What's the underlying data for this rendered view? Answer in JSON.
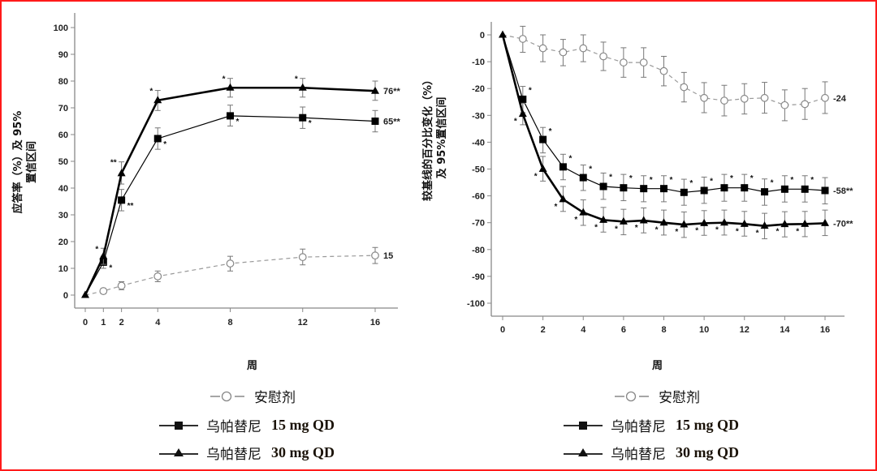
{
  "frame": {
    "border_color": "#ff1a1a"
  },
  "chart_data": [
    {
      "type": "line",
      "title": "",
      "xlabel": "周",
      "ylabel_line1": "应答率（%）及 95%",
      "ylabel_line2": "置信区间",
      "xlim": [
        0,
        16
      ],
      "ylim": [
        0,
        100
      ],
      "xticks": [
        0,
        1,
        2,
        4,
        8,
        12,
        16
      ],
      "yticks": [
        0,
        10,
        20,
        30,
        40,
        50,
        60,
        70,
        80,
        90,
        100
      ],
      "grid": false,
      "legend_position": "bottom",
      "series": [
        {
          "name": "安慰剂",
          "marker": "open-circle",
          "style": "dashed",
          "color": "#888888",
          "x": [
            0,
            1,
            2,
            4,
            8,
            12,
            16
          ],
          "values": [
            0,
            1.5,
            3.5,
            7,
            11.8,
            14.2,
            14.8
          ],
          "ci_low": [
            0,
            0.5,
            2,
            5,
            9,
            11.3,
            11.8
          ],
          "ci_high": [
            0,
            2.5,
            5,
            9,
            14.5,
            17.2,
            17.8
          ],
          "annotations": [
            "",
            "",
            "",
            "",
            "",
            "",
            ""
          ],
          "end_label": "15"
        },
        {
          "name": "乌帕替尼 15 mg QD",
          "marker": "filled-square",
          "style": "solid",
          "color": "#111111",
          "x": [
            0,
            1,
            2,
            4,
            8,
            12,
            16
          ],
          "values": [
            0,
            12.3,
            35.5,
            58.5,
            67,
            66.3,
            65
          ],
          "ci_low": [
            0,
            10,
            31.5,
            54.5,
            63.2,
            62.3,
            61
          ],
          "ci_high": [
            0,
            14.5,
            39.5,
            62.5,
            71,
            70.3,
            69
          ],
          "annotations": [
            "",
            "*",
            "**",
            "*",
            "*",
            "*",
            ""
          ],
          "end_label": "65**"
        },
        {
          "name": "乌帕替尼 30 mg QD",
          "marker": "filled-triangle",
          "style": "solid-thick",
          "color": "#000000",
          "x": [
            0,
            1,
            2,
            4,
            8,
            12,
            16
          ],
          "values": [
            0,
            14.5,
            45.5,
            72.8,
            77.5,
            77.5,
            76.3
          ],
          "ci_low": [
            0,
            11.5,
            41.5,
            69,
            74,
            74,
            72.8
          ],
          "ci_high": [
            0,
            17.5,
            49.8,
            76.5,
            81,
            81,
            80
          ],
          "annotations": [
            "",
            "*",
            "**",
            "*",
            "*",
            "*",
            ""
          ],
          "end_label": "76**"
        }
      ]
    },
    {
      "type": "line",
      "title": "",
      "xlabel": "周",
      "ylabel_line1": "较基线的百分比变化（%）",
      "ylabel_line2": "及 95%置信区间",
      "xlim": [
        0,
        16
      ],
      "ylim": [
        -100,
        0
      ],
      "xticks": [
        0,
        2,
        4,
        6,
        8,
        10,
        12,
        14,
        16
      ],
      "yticks": [
        0,
        -10,
        -20,
        -30,
        -40,
        -50,
        -60,
        -70,
        -80,
        -90,
        -100
      ],
      "grid": false,
      "legend_position": "bottom",
      "series": [
        {
          "name": "安慰剂",
          "marker": "open-circle",
          "style": "dashed",
          "color": "#888888",
          "x": [
            0,
            1,
            2,
            3,
            4,
            5,
            6,
            7,
            8,
            9,
            10,
            11,
            12,
            13,
            14,
            15,
            16
          ],
          "values": [
            0,
            -1.5,
            -5,
            -6.5,
            -5,
            -8,
            -10.3,
            -10.3,
            -13.5,
            -19.5,
            -23.5,
            -24.5,
            -23.8,
            -23.5,
            -26.2,
            -25.8,
            -23.5
          ],
          "ci_low": [
            0,
            -6.5,
            -10,
            -11.5,
            -10,
            -13.3,
            -15.8,
            -15.8,
            -19,
            -25,
            -29,
            -30.2,
            -29.5,
            -29.2,
            -32,
            -31.5,
            -29.3
          ],
          "ci_high": [
            0,
            3.2,
            0,
            -1.7,
            0,
            -2.7,
            -4.8,
            -4.8,
            -8,
            -14,
            -17.8,
            -18.8,
            -18.2,
            -17.7,
            -20.5,
            -20,
            -17.5
          ],
          "annotations": [
            "",
            "",
            "",
            "",
            "",
            "",
            "",
            "",
            "",
            "",
            "",
            "",
            "",
            "",
            "",
            "",
            ""
          ],
          "end_label": "-24"
        },
        {
          "name": "乌帕替尼 15 mg QD",
          "marker": "filled-square",
          "style": "solid",
          "color": "#111111",
          "x": [
            0,
            1,
            2,
            3,
            4,
            5,
            6,
            7,
            8,
            9,
            10,
            11,
            12,
            13,
            14,
            15,
            16
          ],
          "values": [
            0,
            -24,
            -39,
            -49.2,
            -53.2,
            -56.5,
            -57,
            -57.3,
            -57.3,
            -58.7,
            -58,
            -57,
            -57,
            -58.5,
            -57.5,
            -57.5,
            -58
          ],
          "ci_low": [
            0,
            -29,
            -44,
            -54,
            -58,
            -61.3,
            -61.8,
            -62.2,
            -62.2,
            -63.5,
            -62.8,
            -62,
            -62,
            -63.5,
            -62.3,
            -62.3,
            -63
          ],
          "ci_high": [
            0,
            -19.2,
            -34.5,
            -44.5,
            -48.5,
            -51.5,
            -52,
            -52.5,
            -52.5,
            -53.8,
            -53,
            -52,
            -52,
            -53.7,
            -52.5,
            -52.5,
            -53.2
          ],
          "annotations": [
            "",
            "*",
            "*",
            "*",
            "*",
            "*",
            "*",
            "*",
            "*",
            "*",
            "*",
            "*",
            "*",
            "*",
            "*",
            "*",
            ""
          ],
          "end_label": "-58**"
        },
        {
          "name": "乌帕替尼 30 mg QD",
          "marker": "filled-triangle",
          "style": "solid-thick",
          "color": "#000000",
          "x": [
            0,
            1,
            2,
            3,
            4,
            5,
            6,
            7,
            8,
            9,
            10,
            11,
            12,
            13,
            14,
            15,
            16
          ],
          "values": [
            0,
            -29.5,
            -50,
            -61.3,
            -66.2,
            -69,
            -69.6,
            -69.2,
            -70,
            -70.7,
            -70.2,
            -70,
            -70.5,
            -71.2,
            -70.6,
            -70.5,
            -70.2
          ],
          "ci_low": [
            0,
            -33.5,
            -54.5,
            -65.8,
            -71,
            -73.5,
            -74.5,
            -73.8,
            -74.6,
            -75.5,
            -74.7,
            -74.6,
            -75,
            -76,
            -75.3,
            -75.2,
            -74.8
          ],
          "ci_high": [
            0,
            -25.5,
            -45.3,
            -56.5,
            -61.5,
            -64.3,
            -65,
            -64.5,
            -65.3,
            -66,
            -65.5,
            -65.3,
            -65.8,
            -66.5,
            -65.9,
            -65.8,
            -65.3
          ],
          "annotations": [
            "",
            "*",
            "*",
            "*",
            "*",
            "*",
            "*",
            "*",
            "*",
            "*",
            "*",
            "*",
            "*",
            "*",
            "*",
            "*",
            ""
          ],
          "end_label": "-70**"
        }
      ]
    }
  ],
  "legend": [
    {
      "name": "安慰剂",
      "dose": ""
    },
    {
      "name": "乌帕替尼",
      "dose": "15 mg QD"
    },
    {
      "name": "乌帕替尼",
      "dose": "30 mg QD"
    }
  ]
}
